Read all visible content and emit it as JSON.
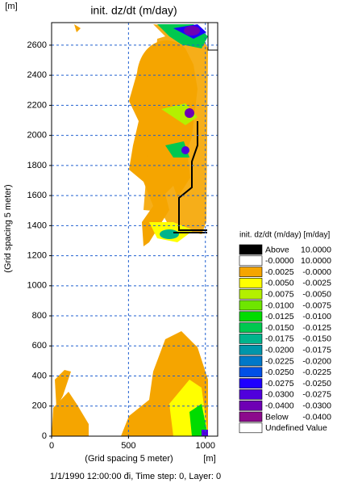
{
  "chart_data": {
    "type": "contour-map",
    "title": "init. dz/dt (m/day)",
    "x_label": "(Grid spacing 5 meter)",
    "y_label": "(Grid spacing 5 meter)",
    "x_unit": "[m]",
    "y_unit": "[m]",
    "xlim": [
      0,
      1080
    ],
    "ylim": [
      0,
      2750
    ],
    "xticks": [
      0,
      500,
      1000
    ],
    "yticks": [
      0,
      200,
      400,
      600,
      800,
      1000,
      1200,
      1400,
      1600,
      1800,
      2000,
      2200,
      2400,
      2600
    ],
    "grid": true,
    "legend": {
      "title": "init. dz/dt (m/day) [m/day]",
      "items": [
        {
          "from": "Above",
          "to": "10.0000",
          "color": "#000000"
        },
        {
          "from": "-0.0000",
          "to": "10.0000",
          "color": "#ffffff"
        },
        {
          "from": "-0.0025",
          "to": "-0.0000",
          "color": "#f5a500"
        },
        {
          "from": "-0.0050",
          "to": "-0.0025",
          "color": "#ffff00"
        },
        {
          "from": "-0.0075",
          "to": "-0.0050",
          "color": "#b4f000"
        },
        {
          "from": "-0.0100",
          "to": "-0.0075",
          "color": "#6ee600"
        },
        {
          "from": "-0.0125",
          "to": "-0.0100",
          "color": "#00dc00"
        },
        {
          "from": "-0.0150",
          "to": "-0.0125",
          "color": "#00c850"
        },
        {
          "from": "-0.0175",
          "to": "-0.0150",
          "color": "#00b48c"
        },
        {
          "from": "-0.0200",
          "to": "-0.0175",
          "color": "#0096aa"
        },
        {
          "from": "-0.0225",
          "to": "-0.0200",
          "color": "#0078c8"
        },
        {
          "from": "-0.0250",
          "to": "-0.0225",
          "color": "#0050e6"
        },
        {
          "from": "-0.0275",
          "to": "-0.0250",
          "color": "#1e00ff"
        },
        {
          "from": "-0.0300",
          "to": "-0.0275",
          "color": "#5000dc"
        },
        {
          "from": "-0.0400",
          "to": "-0.0300",
          "color": "#6e00b4"
        },
        {
          "from": "Below",
          "to": "-0.0400",
          "color": "#8c0a8c"
        },
        {
          "from": "Undefined Value",
          "to": null,
          "color": "#ffffff"
        }
      ]
    },
    "footer": "1/1/1990 12:00:00 đi, Time step: 0, Layer: 0"
  }
}
